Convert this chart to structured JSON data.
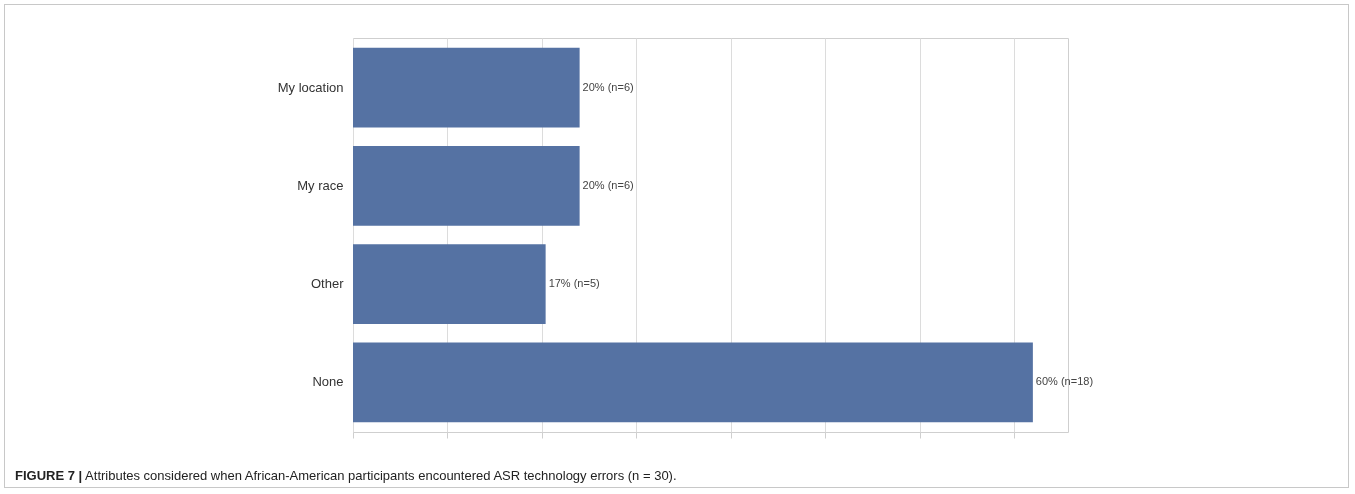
{
  "chart_data": {
    "type": "bar",
    "orientation": "horizontal",
    "categories": [
      "My location",
      "My race",
      "Other",
      "None"
    ],
    "values": [
      20,
      20,
      17,
      60
    ],
    "value_labels": [
      "20% (n=6)",
      "20% (n=6)",
      "17% (n=5)",
      "60% (n=18)"
    ],
    "color": "#5572a3",
    "xlim": [
      0,
      63.1
    ],
    "xticks": [
      {
        "value": 0,
        "label": null
      },
      {
        "value": 8.33,
        "label": null
      },
      {
        "value": 16.67,
        "label": null
      },
      {
        "value": 25,
        "label": null
      },
      {
        "value": 33.33,
        "label": null
      },
      {
        "value": 41.67,
        "label": null
      },
      {
        "value": 50,
        "label": null
      },
      {
        "value": 58.33,
        "label": null
      }
    ],
    "grid": "x",
    "tick_labels": "y",
    "annotations": [
      "FIGURE 7 | Attributes considered when African-American participants encountered ASR technology errors (n = 30)."
    ]
  }
}
